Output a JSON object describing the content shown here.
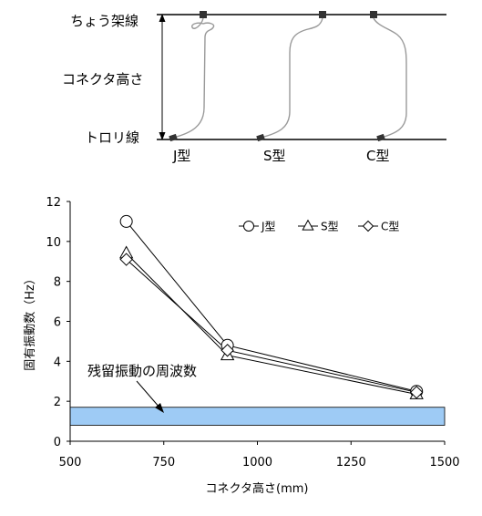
{
  "diagram": {
    "labels": {
      "catenary": "ちょう架線",
      "connector_height": "コネクタ高さ",
      "trolley": "トロリ線"
    },
    "types": [
      "J型",
      "S型",
      "C型"
    ]
  },
  "chart_data": {
    "type": "line",
    "title": "",
    "xlabel": "コネクタ高さ(mm)",
    "ylabel": "固有振動数（Hz）",
    "xlim": [
      500,
      1500
    ],
    "ylim": [
      0,
      12
    ],
    "xticks": [
      500,
      750,
      1000,
      1250,
      1500
    ],
    "yticks": [
      0,
      2,
      4,
      6,
      8,
      10,
      12
    ],
    "grid": false,
    "legend": "top-right",
    "series": [
      {
        "name": "J型",
        "marker": "circle",
        "x": [
          650,
          920,
          1425
        ],
        "y": [
          11.0,
          4.8,
          2.5
        ]
      },
      {
        "name": "S型",
        "marker": "triangle",
        "x": [
          650,
          920,
          1425
        ],
        "y": [
          9.4,
          4.3,
          2.35
        ]
      },
      {
        "name": "C型",
        "marker": "diamond",
        "x": [
          650,
          920,
          1425
        ],
        "y": [
          9.1,
          4.55,
          2.45
        ]
      }
    ],
    "band": {
      "label": "残留振動の周波数",
      "y_range": [
        0.8,
        1.7
      ],
      "color": "#9ecbf5"
    }
  }
}
